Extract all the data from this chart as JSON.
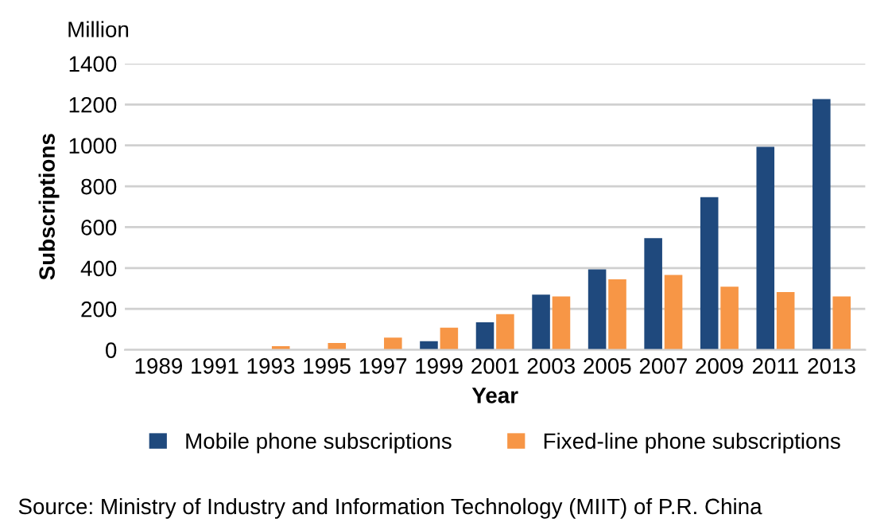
{
  "chart_data": {
    "type": "bar",
    "xlabel": "Year",
    "ylabel": "Subscriptions",
    "subtitle": "Million",
    "categories": [
      "1989",
      "1991",
      "1993",
      "1995",
      "1997",
      "1999",
      "2001",
      "2003",
      "2005",
      "2007",
      "2009",
      "2011",
      "2013"
    ],
    "series": [
      {
        "name": "Mobile phone subscriptions",
        "color": "#1f497d",
        "values": [
          null,
          null,
          null,
          null,
          null,
          42,
          135,
          270,
          393,
          546,
          747,
          993,
          1226
        ]
      },
      {
        "name": "Fixed-line phone subscriptions",
        "color": "#f79646",
        "values": [
          null,
          null,
          18,
          33,
          60,
          108,
          174,
          261,
          345,
          366,
          309,
          282,
          261
        ]
      }
    ],
    "ylim": [
      0,
      1400
    ],
    "yticks": [
      0,
      200,
      400,
      600,
      800,
      1000,
      1200,
      1400
    ],
    "grid": "y",
    "legend": "bottom",
    "annotations": [
      "Source: Ministry of Industry and Information Technology (MIIT) of P.R. China"
    ]
  }
}
